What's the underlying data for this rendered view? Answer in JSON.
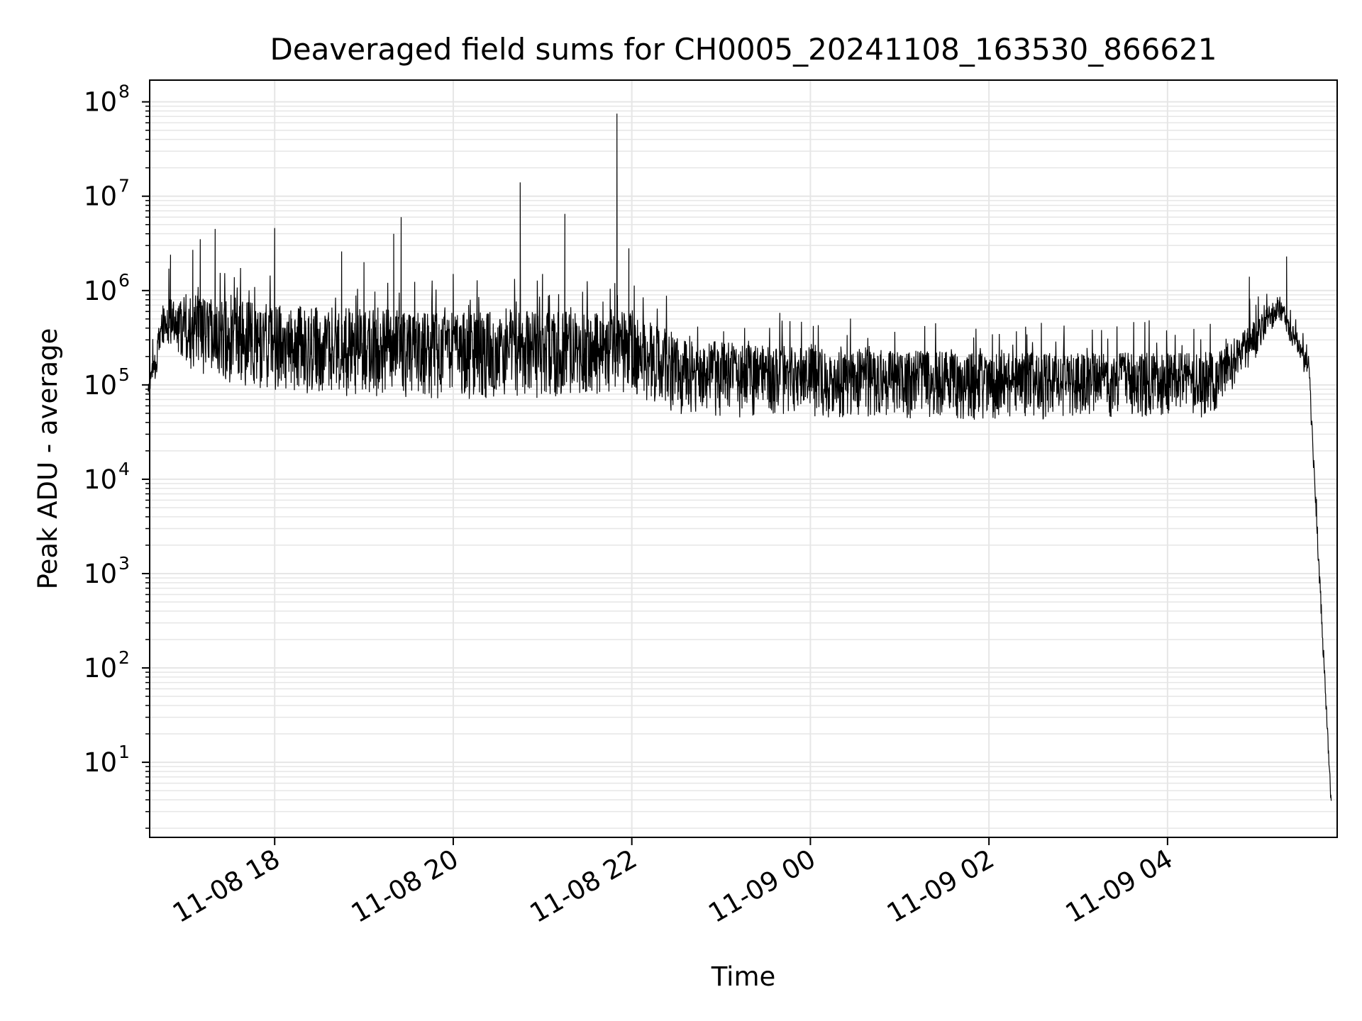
{
  "chart_data": {
    "type": "line",
    "title": "Deaveraged field sums for CH0005_20241108_163530_866621",
    "xlabel": "Time",
    "ylabel": "Peak ADU - average",
    "x_start": "2024-11-08 16:35",
    "x_end": "2024-11-09 05:50",
    "xlim": [
      "2024-11-08 16:36",
      "2024-11-09 05:54"
    ],
    "x_ticks": [
      {
        "value": "2024-11-08 18:00",
        "label": "11-08 18"
      },
      {
        "value": "2024-11-08 20:00",
        "label": "11-08 20"
      },
      {
        "value": "2024-11-08 22:00",
        "label": "11-08 22"
      },
      {
        "value": "2024-11-09 00:00",
        "label": "11-09 00"
      },
      {
        "value": "2024-11-09 02:00",
        "label": "11-09 02"
      },
      {
        "value": "2024-11-09 04:00",
        "label": "11-09 04"
      }
    ],
    "y_scale": "log",
    "ylim": [
      1.6,
      170000000
    ],
    "y_ticks": [
      {
        "value": 10,
        "base": "10",
        "exp": "1"
      },
      {
        "value": 100,
        "base": "10",
        "exp": "2"
      },
      {
        "value": 1000,
        "base": "10",
        "exp": "3"
      },
      {
        "value": 10000,
        "base": "10",
        "exp": "4"
      },
      {
        "value": 100000,
        "base": "10",
        "exp": "5"
      },
      {
        "value": 1000000,
        "base": "10",
        "exp": "6"
      },
      {
        "value": 10000000,
        "base": "10",
        "exp": "7"
      },
      {
        "value": 100000000,
        "base": "10",
        "exp": "8"
      }
    ],
    "grid": true,
    "line_color": "#000000",
    "grid_color": "#e6e6e6",
    "baseline_envelope": [
      {
        "x": "2024-11-08 16:35",
        "lo": 50000,
        "hi": 100000
      },
      {
        "x": "2024-11-08 16:45",
        "lo": 250000,
        "hi": 800000
      },
      {
        "x": "2024-11-08 17:10",
        "lo": 120000,
        "hi": 900000
      },
      {
        "x": "2024-11-08 18:00",
        "lo": 80000,
        "hi": 700000
      },
      {
        "x": "2024-11-08 20:00",
        "lo": 70000,
        "hi": 600000
      },
      {
        "x": "2024-11-08 22:00",
        "lo": 70000,
        "hi": 600000
      },
      {
        "x": "2024-11-08 22:40",
        "lo": 45000,
        "hi": 300000
      },
      {
        "x": "2024-11-09 00:00",
        "lo": 45000,
        "hi": 250000
      },
      {
        "x": "2024-11-09 02:00",
        "lo": 42000,
        "hi": 220000
      },
      {
        "x": "2024-11-09 04:30",
        "lo": 45000,
        "hi": 220000
      },
      {
        "x": "2024-11-09 05:00",
        "lo": 200000,
        "hi": 500000
      },
      {
        "x": "2024-11-09 05:15",
        "lo": 500000,
        "hi": 900000
      },
      {
        "x": "2024-11-09 05:35",
        "lo": 100000,
        "hi": 200000
      },
      {
        "x": "2024-11-09 05:50",
        "lo": 3,
        "hi": 4
      }
    ],
    "peaks": [
      {
        "x": "2024-11-08 16:50",
        "y": 2400000
      },
      {
        "x": "2024-11-08 17:05",
        "y": 2700000
      },
      {
        "x": "2024-11-08 17:10",
        "y": 3500000
      },
      {
        "x": "2024-11-08 17:20",
        "y": 4500000
      },
      {
        "x": "2024-11-08 18:00",
        "y": 4600000
      },
      {
        "x": "2024-11-08 18:45",
        "y": 2600000
      },
      {
        "x": "2024-11-08 19:00",
        "y": 2000000
      },
      {
        "x": "2024-11-08 19:20",
        "y": 4000000
      },
      {
        "x": "2024-11-08 19:25",
        "y": 6000000
      },
      {
        "x": "2024-11-08 20:00",
        "y": 1500000
      },
      {
        "x": "2024-11-08 20:45",
        "y": 14000000
      },
      {
        "x": "2024-11-08 21:00",
        "y": 1500000
      },
      {
        "x": "2024-11-08 21:15",
        "y": 6500000
      },
      {
        "x": "2024-11-08 21:50",
        "y": 75000000
      },
      {
        "x": "2024-11-08 21:58",
        "y": 2800000
      },
      {
        "x": "2024-11-09 04:55",
        "y": 1400000
      },
      {
        "x": "2024-11-09 05:20",
        "y": 2300000
      }
    ]
  }
}
